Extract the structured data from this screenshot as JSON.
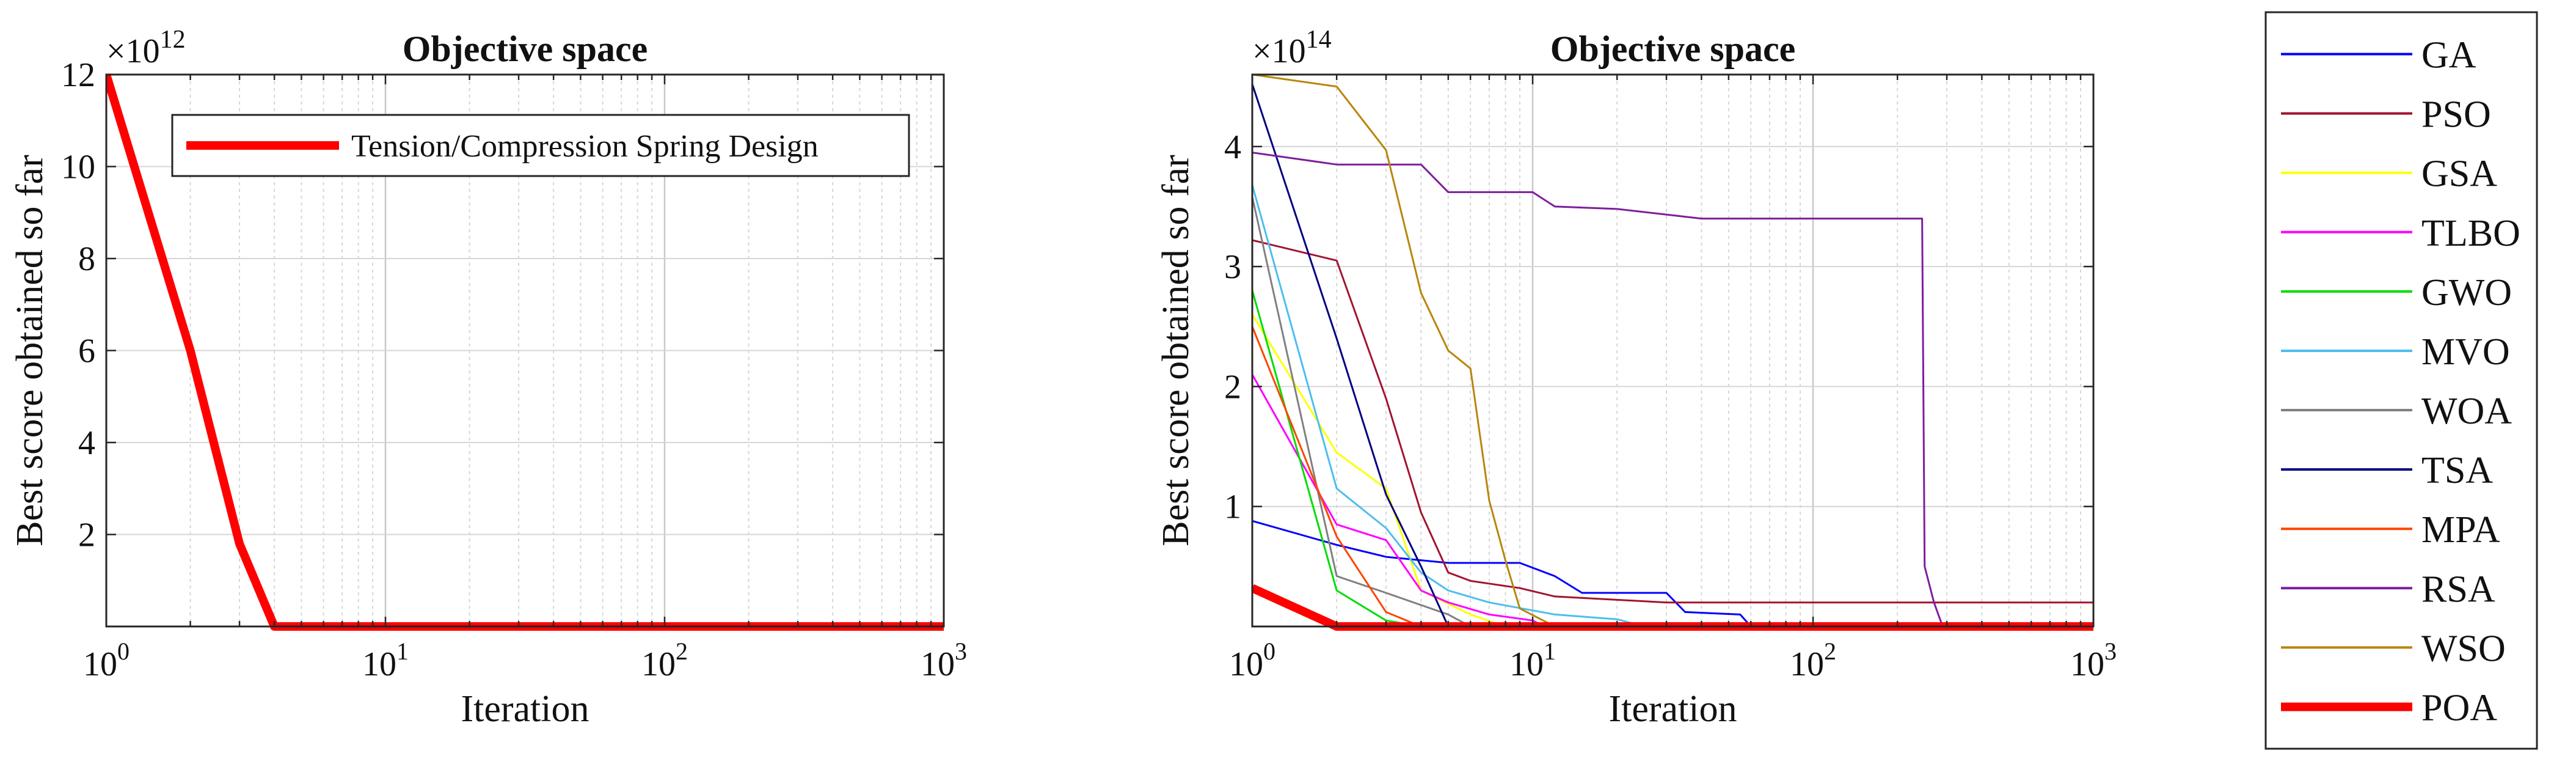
{
  "chart_data": [
    {
      "type": "line",
      "title": "Objective space",
      "xlabel": "Iteration",
      "ylabel": "Best score obtained so far",
      "xscale": "log",
      "xlim": [
        1,
        1000
      ],
      "ylim": [
        0,
        12
      ],
      "exponent_label": "×10",
      "exponent_power": "12",
      "grid": true,
      "legend_position": "top-right inside",
      "xtick_labels": [
        {
          "base": "10",
          "exp": "0"
        },
        {
          "base": "10",
          "exp": "1"
        },
        {
          "base": "10",
          "exp": "2"
        },
        {
          "base": "10",
          "exp": "3"
        }
      ],
      "yticks": [
        2,
        4,
        6,
        8,
        10,
        12
      ],
      "ytick_labels": [
        "2",
        "4",
        "6",
        "8",
        "10",
        "12"
      ],
      "series": [
        {
          "name": "Tension/Compression Spring Design",
          "color": "#ff0000",
          "width": 14,
          "points": [
            [
              1,
              12
            ],
            [
              2,
              6
            ],
            [
              3,
              1.8
            ],
            [
              4,
              0
            ],
            [
              1000,
              0
            ]
          ]
        }
      ]
    },
    {
      "type": "line",
      "title": "Objective space",
      "xlabel": "Iteration",
      "ylabel": "Best score obtained so far",
      "xscale": "log",
      "xlim": [
        1,
        1000
      ],
      "ylim": [
        0,
        4.6
      ],
      "exponent_label": "×10",
      "exponent_power": "14",
      "grid": true,
      "legend_position": "outside right",
      "xtick_labels": [
        {
          "base": "10",
          "exp": "0"
        },
        {
          "base": "10",
          "exp": "1"
        },
        {
          "base": "10",
          "exp": "2"
        },
        {
          "base": "10",
          "exp": "3"
        }
      ],
      "yticks": [
        1,
        2,
        3,
        4
      ],
      "ytick_labels": [
        "1",
        "2",
        "3",
        "4"
      ],
      "series": [
        {
          "name": "GA",
          "color": "#0000ff",
          "width": 3,
          "points": [
            [
              1,
              0.88
            ],
            [
              2,
              0.68
            ],
            [
              3,
              0.58
            ],
            [
              5,
              0.53
            ],
            [
              9,
              0.53
            ],
            [
              12,
              0.42
            ],
            [
              15,
              0.28
            ],
            [
              30,
              0.28
            ],
            [
              35,
              0.12
            ],
            [
              55,
              0.1
            ],
            [
              60,
              0
            ],
            [
              1000,
              0
            ]
          ]
        },
        {
          "name": "PSO",
          "color": "#a2142f",
          "width": 3,
          "points": [
            [
              1,
              3.22
            ],
            [
              2,
              3.05
            ],
            [
              3,
              1.9
            ],
            [
              4,
              0.95
            ],
            [
              5,
              0.45
            ],
            [
              6,
              0.38
            ],
            [
              9,
              0.32
            ],
            [
              12,
              0.25
            ],
            [
              30,
              0.2
            ],
            [
              1000,
              0.2
            ]
          ]
        },
        {
          "name": "GSA",
          "color": "#ffff00",
          "width": 3,
          "points": [
            [
              1,
              2.6
            ],
            [
              2,
              1.45
            ],
            [
              3,
              1.15
            ],
            [
              4,
              0.3
            ],
            [
              6,
              0.1
            ],
            [
              8,
              0
            ],
            [
              1000,
              0
            ]
          ]
        },
        {
          "name": "TLBO",
          "color": "#ff00ff",
          "width": 3,
          "points": [
            [
              1,
              2.1
            ],
            [
              2,
              0.85
            ],
            [
              3,
              0.72
            ],
            [
              4,
              0.3
            ],
            [
              5,
              0.2
            ],
            [
              7,
              0.1
            ],
            [
              10,
              0.05
            ],
            [
              11,
              0
            ],
            [
              1000,
              0
            ]
          ]
        },
        {
          "name": "GWO",
          "color": "#00dd00",
          "width": 3,
          "points": [
            [
              1,
              2.8
            ],
            [
              2,
              0.3
            ],
            [
              3,
              0.05
            ],
            [
              4,
              0
            ],
            [
              1000,
              0
            ]
          ]
        },
        {
          "name": "MVO",
          "color": "#4dbeee",
          "width": 3,
          "points": [
            [
              1,
              3.68
            ],
            [
              2,
              1.15
            ],
            [
              3,
              0.82
            ],
            [
              4,
              0.45
            ],
            [
              5,
              0.3
            ],
            [
              7,
              0.2
            ],
            [
              12,
              0.1
            ],
            [
              20,
              0.06
            ],
            [
              25,
              0
            ],
            [
              1000,
              0
            ]
          ]
        },
        {
          "name": "WOA",
          "color": "#808080",
          "width": 3,
          "points": [
            [
              1,
              3.58
            ],
            [
              2,
              0.42
            ],
            [
              3,
              0.28
            ],
            [
              5,
              0.1
            ],
            [
              6,
              0
            ],
            [
              1000,
              0
            ]
          ]
        },
        {
          "name": "TSA",
          "color": "#000080",
          "width": 3,
          "points": [
            [
              1,
              4.52
            ],
            [
              2,
              2.4
            ],
            [
              3,
              1.1
            ],
            [
              4,
              0.5
            ],
            [
              5,
              0
            ],
            [
              1000,
              0
            ]
          ]
        },
        {
          "name": "MPA",
          "color": "#ff4500",
          "width": 3,
          "points": [
            [
              1,
              2.5
            ],
            [
              2,
              0.75
            ],
            [
              3,
              0.12
            ],
            [
              4,
              0
            ],
            [
              1000,
              0
            ]
          ]
        },
        {
          "name": "RSA",
          "color": "#7e1e9c",
          "width": 3,
          "points": [
            [
              1,
              3.95
            ],
            [
              2,
              3.85
            ],
            [
              4,
              3.85
            ],
            [
              5,
              3.62
            ],
            [
              10,
              3.62
            ],
            [
              12,
              3.5
            ],
            [
              20,
              3.48
            ],
            [
              40,
              3.4
            ],
            [
              245,
              3.4
            ],
            [
              250,
              0.5
            ],
            [
              270,
              0.2
            ],
            [
              290,
              0
            ],
            [
              1000,
              0
            ]
          ]
        },
        {
          "name": "WSO",
          "color": "#b8860b",
          "width": 3,
          "points": [
            [
              1,
              4.6
            ],
            [
              2,
              4.5
            ],
            [
              3,
              3.97
            ],
            [
              4,
              2.78
            ],
            [
              5,
              2.3
            ],
            [
              6,
              2.15
            ],
            [
              7,
              1.05
            ],
            [
              8,
              0.55
            ],
            [
              9,
              0.15
            ],
            [
              12,
              0
            ],
            [
              1000,
              0
            ]
          ]
        },
        {
          "name": "POA",
          "color": "#ff0000",
          "width": 14,
          "points": [
            [
              1,
              0.32
            ],
            [
              2,
              0
            ],
            [
              1000,
              0
            ]
          ]
        }
      ]
    }
  ]
}
